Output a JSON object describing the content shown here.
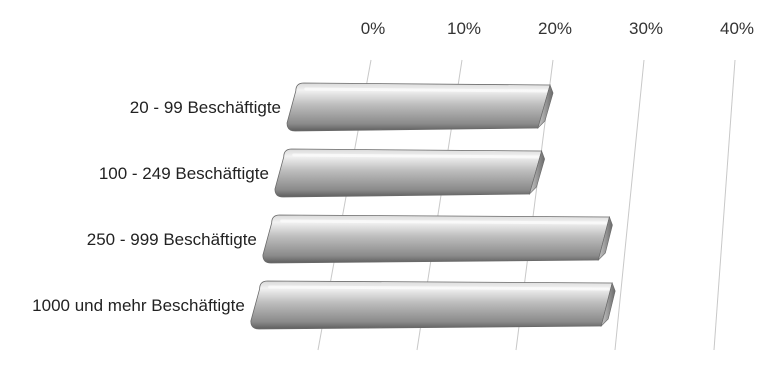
{
  "chart_data": {
    "type": "bar",
    "orientation": "horizontal",
    "style": "3d-perspective",
    "title": "",
    "xlabel": "",
    "ylabel": "",
    "categories": [
      "20 - 99 Beschäftigte",
      "100 - 249 Beschäftigte",
      "250 - 999 Beschäftigte",
      "1000 und mehr Beschäftigte"
    ],
    "values": [
      20,
      20,
      28,
      29
    ],
    "xlim": [
      0,
      40
    ],
    "x_ticks": [
      "0%",
      "10%",
      "20%",
      "30%",
      "40%"
    ],
    "grid": true,
    "legend": "none",
    "colors": {
      "bar_light": "#eeeeee",
      "bar_mid": "#b4b4b4",
      "bar_dark": "#6e6e6e",
      "grid": "#c8c8c8"
    }
  }
}
